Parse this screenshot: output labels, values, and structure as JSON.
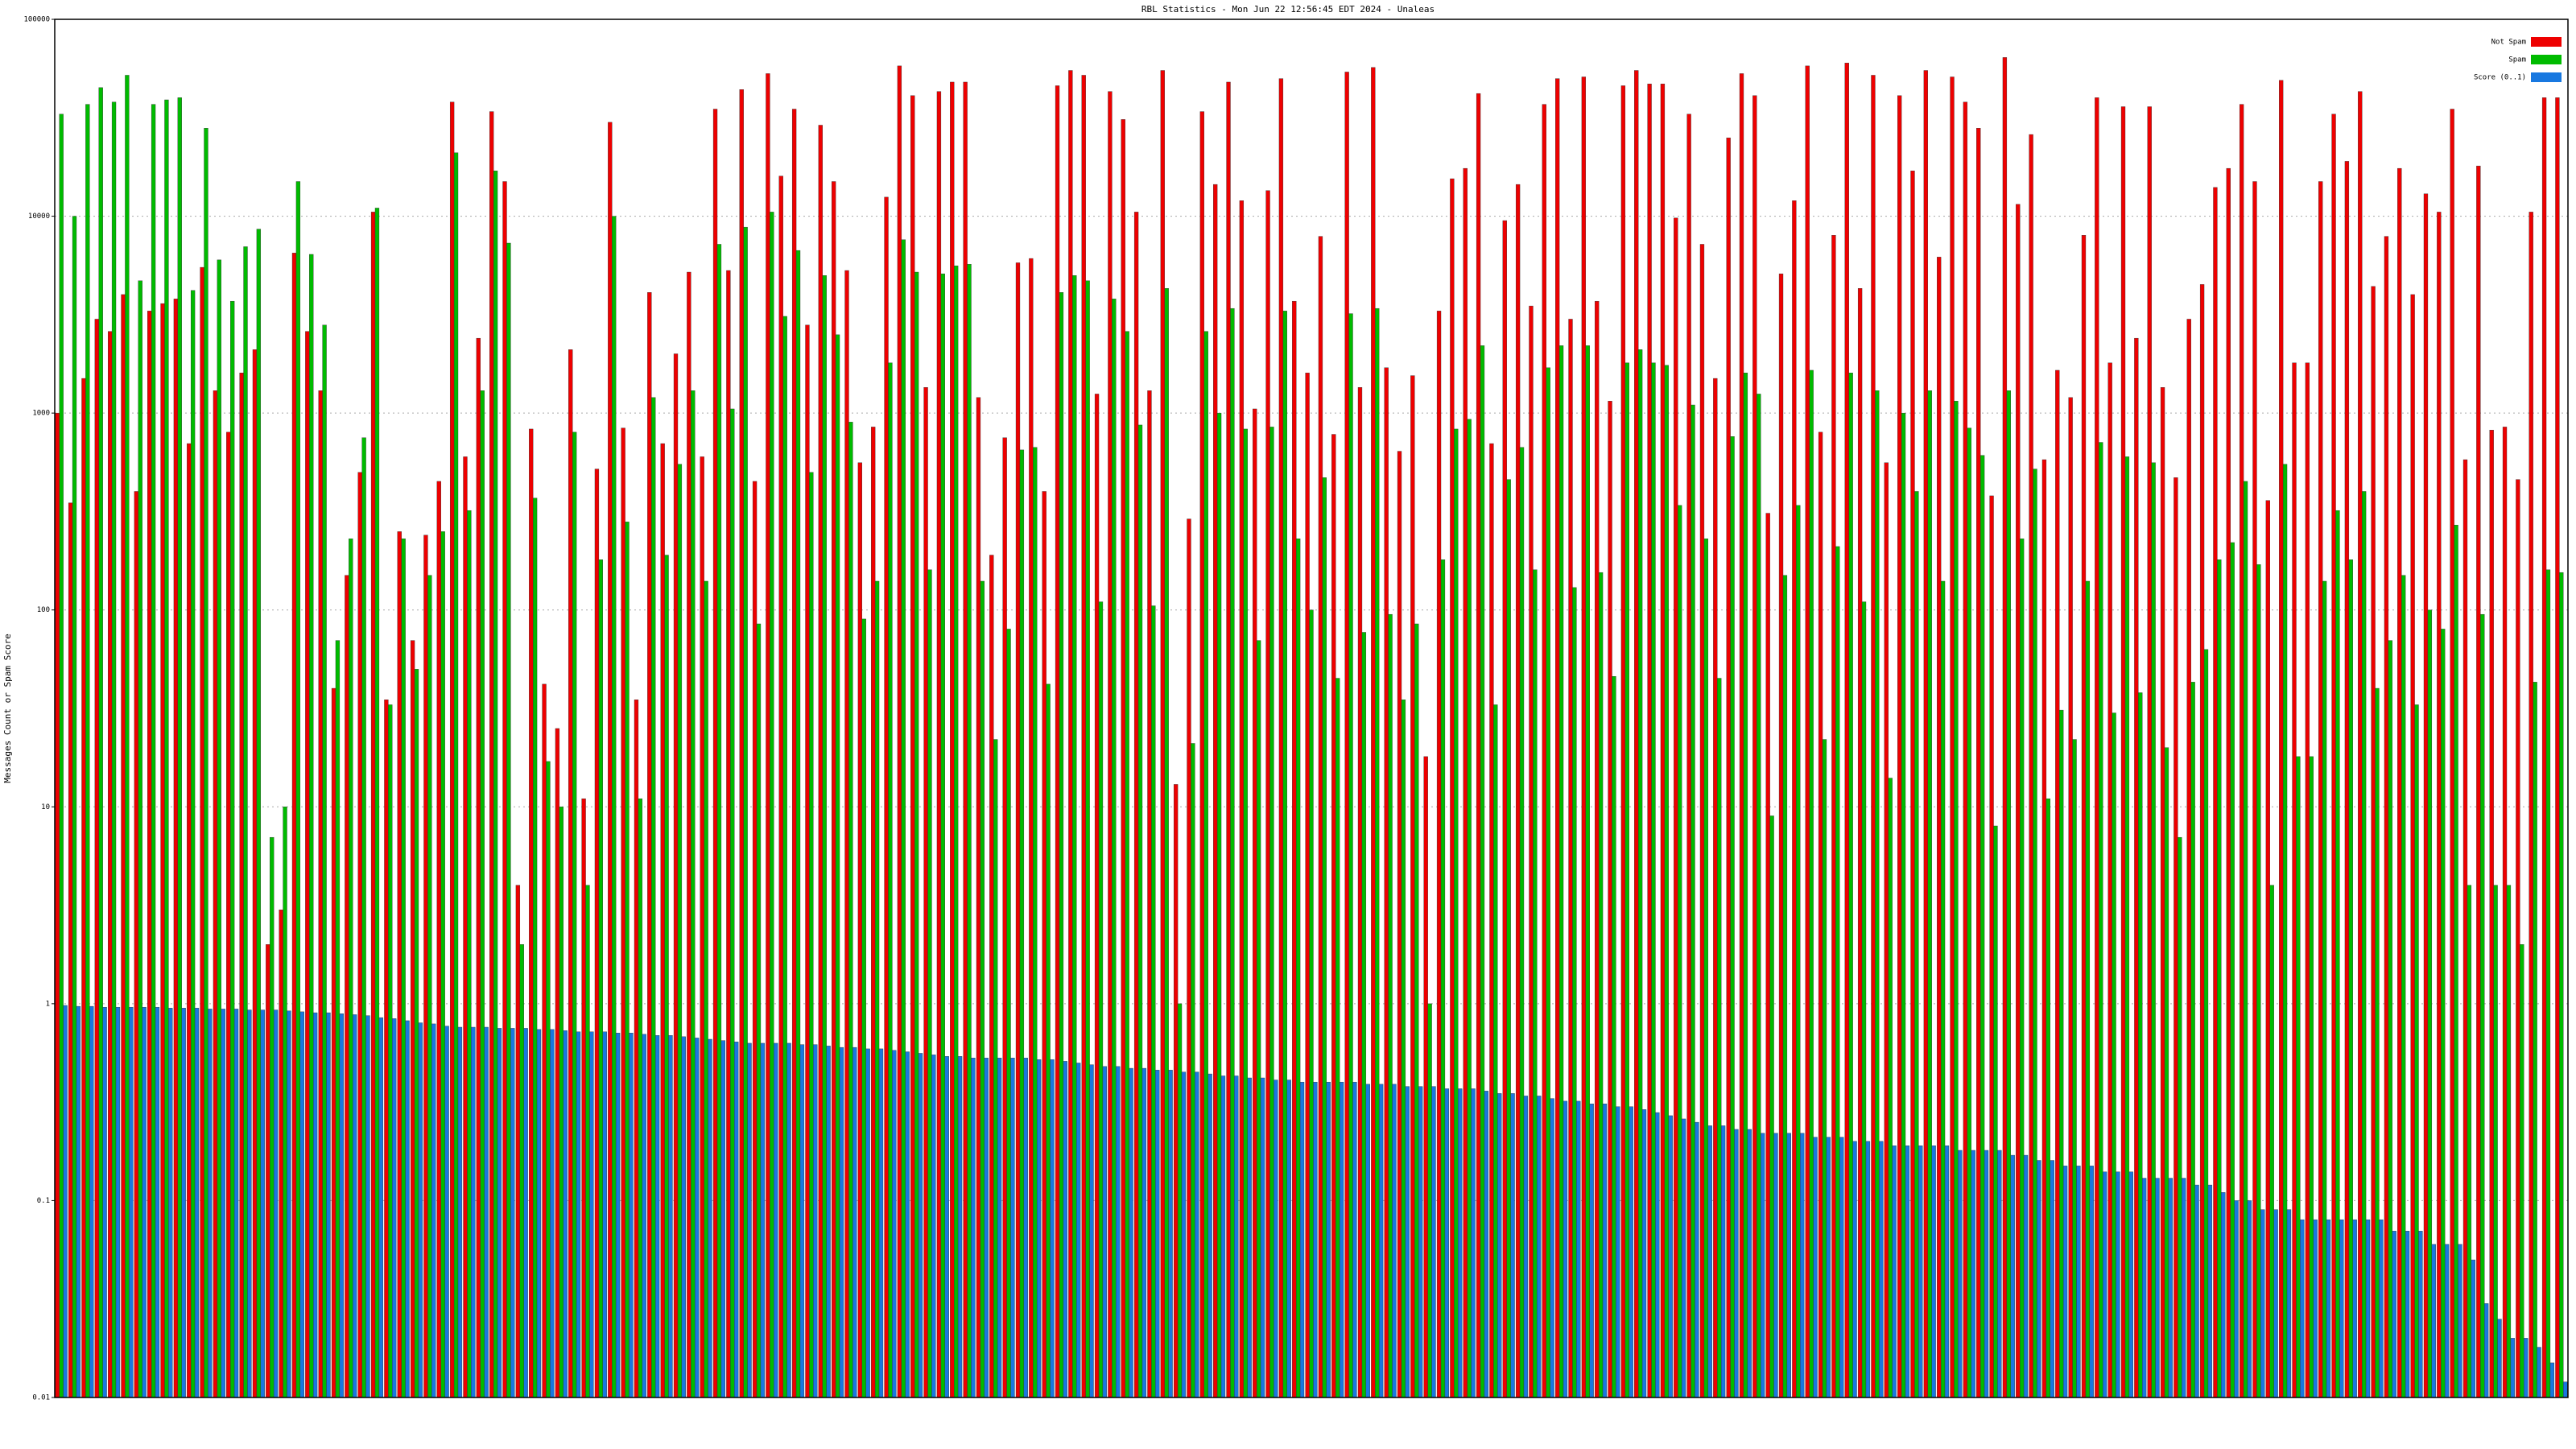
{
  "chart_data": {
    "type": "bar",
    "title": "RBL Statistics - Mon Jun 22 12:56:45 EDT 2024 - Unaleas",
    "y_label": "Messages Count or Spam Score",
    "log_scale": true,
    "grid": true,
    "legend": "top-right",
    "ylim": [
      0.01,
      100000
    ],
    "yticks": [
      0.01,
      0.1,
      1,
      10,
      100,
      1000,
      10000,
      100000
    ],
    "series": [
      {
        "name": "Not Spam",
        "color": "#ee0000",
        "values": [
          1000,
          350,
          1500,
          3000,
          2600,
          4000,
          400,
          3300,
          3600,
          3800,
          700,
          5500,
          1300,
          800,
          1600,
          2100,
          2,
          3,
          6500,
          2600,
          1300,
          40,
          150,
          500,
          10500,
          35,
          250,
          70,
          240,
          450,
          38000,
          600,
          2400,
          34000,
          15000,
          4,
          830,
          42,
          25,
          2100,
          11,
          520,
          30000,
          840,
          35,
          4100,
          700,
          2000,
          5200,
          600,
          35000,
          5300,
          44000,
          450,
          53000,
          16000,
          35000,
          2800,
          29000,
          15000,
          5300,
          560,
          850,
          12500,
          58000,
          41000,
          1350,
          43000,
          48000,
          48000,
          1200,
          190,
          750,
          5800,
          6100,
          400,
          46000,
          55000,
          52000,
          1250,
          43000,
          31000,
          10500,
          1300,
          55000,
          13,
          290,
          34000,
          14500,
          48000,
          12000,
          1050,
          13500,
          50000,
          3700,
          1600,
          7900,
          780,
          54000,
          1350,
          57000,
          1700,
          640,
          1550,
          18,
          3300,
          15500,
          17500,
          42000,
          700,
          9500,
          14500,
          3500,
          37000,
          50000,
          3000,
          51000,
          3700,
          1150,
          46000,
          55000,
          47000,
          47000,
          9800,
          33000,
          7200,
          1500,
          25000,
          53000,
          41000,
          310,
          5100,
          12000,
          58000,
          800,
          8000,
          60000,
          4300,
          52000,
          560,
          41000,
          17000,
          55000,
          6200,
          51000,
          38000,
          28000,
          380,
          64000,
          11500,
          26000,
          580,
          1650,
          1200,
          8000,
          40000,
          1800,
          36000,
          2400,
          36000,
          1350,
          470,
          3000,
          4500,
          14000,
          17500,
          37000,
          15000,
          360,
          49000,
          1800,
          1800,
          15000,
          33000,
          19000,
          43000,
          4400,
          7900,
          17500,
          4000,
          13000,
          10500,
          35000,
          580,
          18000,
          820,
          850,
          460,
          10500,
          40000,
          40000
        ]
      },
      {
        "name": "Spam",
        "color": "#00bb00",
        "values": [
          33000,
          10000,
          37000,
          45000,
          38000,
          52000,
          4700,
          37000,
          39000,
          40000,
          4200,
          28000,
          6000,
          3700,
          7000,
          8600,
          7,
          10,
          15000,
          6400,
          2800,
          70,
          230,
          750,
          11000,
          33,
          230,
          50,
          150,
          250,
          21000,
          320,
          1300,
          17000,
          7300,
          2,
          370,
          17,
          10,
          800,
          4,
          180,
          10000,
          280,
          11,
          1200,
          190,
          550,
          1300,
          140,
          7200,
          1050,
          8800,
          85,
          10500,
          3100,
          6700,
          500,
          5000,
          2500,
          900,
          90,
          140,
          1800,
          7600,
          5200,
          160,
          5100,
          5600,
          5700,
          140,
          22,
          80,
          650,
          670,
          42,
          4100,
          5000,
          4700,
          110,
          3800,
          2600,
          870,
          105,
          4300,
          1,
          21,
          2600,
          1000,
          3400,
          830,
          70,
          850,
          3300,
          230,
          100,
          470,
          45,
          3200,
          77,
          3400,
          95,
          35,
          85,
          1,
          180,
          830,
          930,
          2200,
          33,
          460,
          670,
          160,
          1700,
          2200,
          130,
          2200,
          155,
          46,
          1800,
          2100,
          1800,
          1750,
          340,
          1100,
          230,
          45,
          760,
          1600,
          1250,
          9,
          150,
          340,
          1650,
          22,
          210,
          1600,
          110,
          1300,
          14,
          1000,
          400,
          1300,
          140,
          1150,
          840,
          610,
          8,
          1300,
          230,
          520,
          11,
          31,
          22,
          140,
          710,
          30,
          600,
          38,
          560,
          20,
          7,
          43,
          63,
          180,
          220,
          450,
          170,
          4,
          550,
          18,
          18,
          140,
          320,
          180,
          400,
          40,
          70,
          150,
          33,
          100,
          80,
          270,
          4,
          95,
          4,
          4,
          2,
          43,
          160,
          155
        ]
      },
      {
        "name": "Score (0..1)",
        "color": "#1878e0",
        "values": [
          0.98,
          0.97,
          0.97,
          0.96,
          0.96,
          0.96,
          0.96,
          0.96,
          0.95,
          0.95,
          0.95,
          0.94,
          0.94,
          0.94,
          0.93,
          0.93,
          0.93,
          0.92,
          0.91,
          0.9,
          0.9,
          0.89,
          0.88,
          0.87,
          0.85,
          0.84,
          0.82,
          0.8,
          0.79,
          0.77,
          0.76,
          0.76,
          0.76,
          0.75,
          0.75,
          0.75,
          0.74,
          0.74,
          0.73,
          0.72,
          0.72,
          0.72,
          0.71,
          0.71,
          0.7,
          0.69,
          0.69,
          0.68,
          0.67,
          0.66,
          0.65,
          0.64,
          0.63,
          0.63,
          0.63,
          0.63,
          0.62,
          0.62,
          0.61,
          0.6,
          0.6,
          0.59,
          0.59,
          0.58,
          0.57,
          0.56,
          0.55,
          0.54,
          0.54,
          0.53,
          0.53,
          0.53,
          0.53,
          0.53,
          0.52,
          0.52,
          0.51,
          0.5,
          0.49,
          0.48,
          0.48,
          0.47,
          0.47,
          0.46,
          0.46,
          0.45,
          0.45,
          0.44,
          0.43,
          0.43,
          0.42,
          0.42,
          0.41,
          0.41,
          0.4,
          0.4,
          0.4,
          0.4,
          0.4,
          0.39,
          0.39,
          0.39,
          0.38,
          0.38,
          0.38,
          0.37,
          0.37,
          0.37,
          0.36,
          0.35,
          0.35,
          0.34,
          0.34,
          0.33,
          0.32,
          0.32,
          0.31,
          0.31,
          0.3,
          0.3,
          0.29,
          0.28,
          0.27,
          0.26,
          0.25,
          0.24,
          0.24,
          0.23,
          0.23,
          0.22,
          0.22,
          0.22,
          0.22,
          0.21,
          0.21,
          0.21,
          0.2,
          0.2,
          0.2,
          0.19,
          0.19,
          0.19,
          0.19,
          0.19,
          0.18,
          0.18,
          0.18,
          0.18,
          0.17,
          0.17,
          0.16,
          0.16,
          0.15,
          0.15,
          0.15,
          0.14,
          0.14,
          0.14,
          0.13,
          0.13,
          0.13,
          0.13,
          0.12,
          0.12,
          0.11,
          0.1,
          0.1,
          0.09,
          0.09,
          0.09,
          0.08,
          0.08,
          0.08,
          0.08,
          0.08,
          0.08,
          0.08,
          0.07,
          0.07,
          0.07,
          0.06,
          0.06,
          0.06,
          0.05,
          0.03,
          0.025,
          0.02,
          0.02,
          0.018,
          0.015,
          0.012
        ]
      }
    ]
  }
}
